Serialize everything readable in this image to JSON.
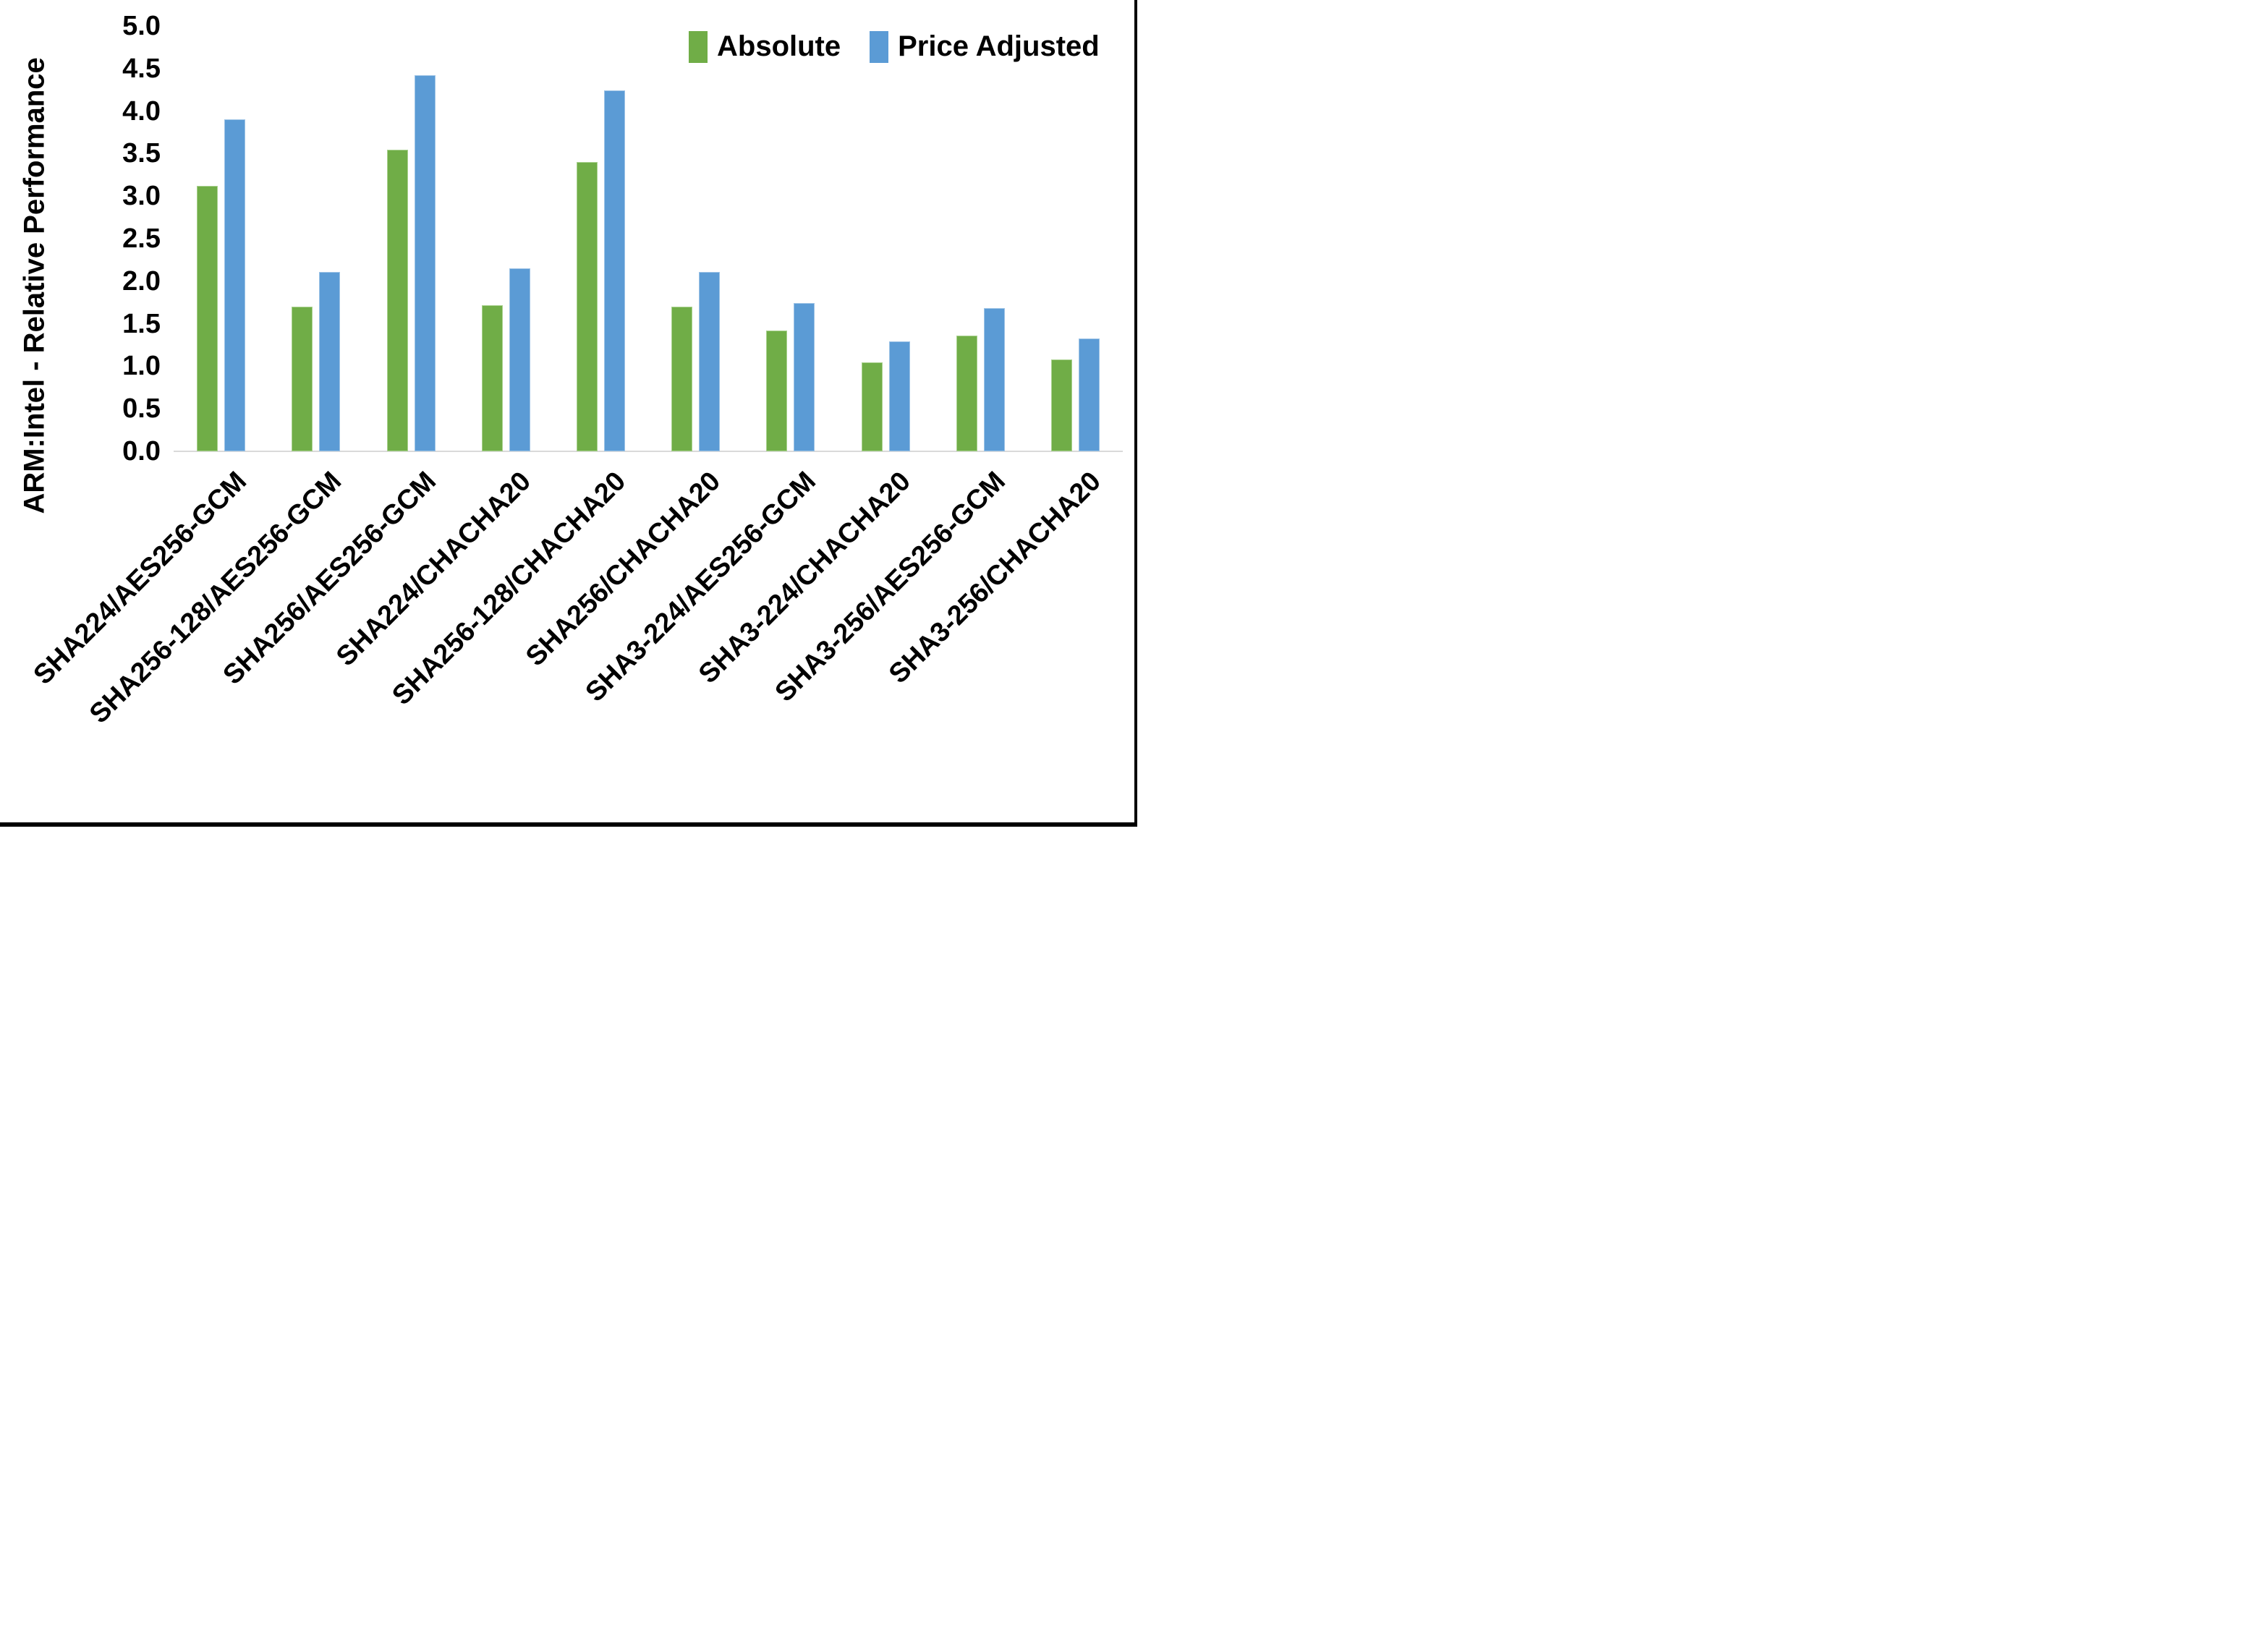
{
  "page": {
    "background": "#ffffff",
    "border_color": "#000000"
  },
  "chart_data": {
    "type": "bar",
    "title": "",
    "xlabel": "",
    "ylabel": "ARM:Intel - Relative Performance",
    "ylim": [
      0.0,
      5.0
    ],
    "ytick_step": 0.5,
    "grid": false,
    "legend_position": "top-right",
    "categories": [
      "SHA224/AES256-GCM",
      "SHA256-128/AES256-GCM",
      "SHA256/AES256-GCM",
      "SHA224/CHACHA20",
      "SHA256-128/CHACHA20",
      "SHA256/CHACHA20",
      "SHA3-224/AES256-GCM",
      "SHA3-224/CHACHA20",
      "SHA3-256/AES256-GCM",
      "SHA3-256/CHACHA20"
    ],
    "series": [
      {
        "name": "Absolute",
        "color": "#70ad47",
        "border_color": "#a9d18e",
        "values": [
          3.12,
          1.7,
          3.55,
          1.72,
          3.4,
          1.7,
          1.42,
          1.05,
          1.36,
          1.08
        ]
      },
      {
        "name": "Price Adjusted",
        "color": "#5b9bd5",
        "border_color": "#9dc3e6",
        "values": [
          3.9,
          2.11,
          4.42,
          2.15,
          4.24,
          2.11,
          1.74,
          1.29,
          1.68,
          1.33
        ]
      }
    ],
    "axis_line_color": "#d9d9d9"
  }
}
